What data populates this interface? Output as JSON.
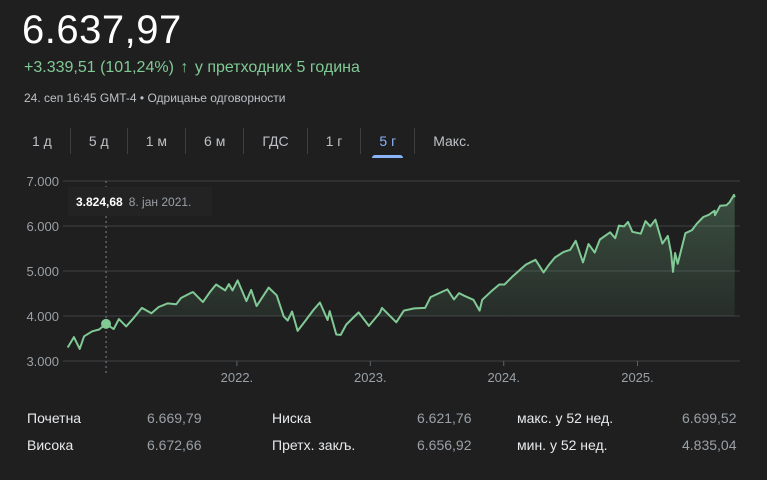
{
  "header": {
    "price": "6.637,97",
    "change": "+3.339,51 (101,24%)",
    "change_icon": "arrow-up-icon",
    "change_period": "у претходних 5 година",
    "timestamp": "24. сеп 16:45 GMT-4",
    "separator": "•",
    "disclaimer": "Одрицање одговорности"
  },
  "tabs": [
    {
      "label": "1 д",
      "active": false
    },
    {
      "label": "5 д",
      "active": false
    },
    {
      "label": "1 м",
      "active": false
    },
    {
      "label": "6 м",
      "active": false
    },
    {
      "label": "ГДС",
      "active": false
    },
    {
      "label": "1 г",
      "active": false
    },
    {
      "label": "5 г",
      "active": true
    },
    {
      "label": "Макс.",
      "active": false
    }
  ],
  "tooltip": {
    "value": "3.824,68",
    "date": "8. јан 2021."
  },
  "colors": {
    "line": "#81c995",
    "accent": "#8ab4f8",
    "background": "#1f1f1f"
  },
  "chart_data": {
    "type": "area",
    "y_ticks": [
      "7.000",
      "6.000",
      "5.000",
      "4.000",
      "3.000"
    ],
    "y_tick_values": [
      7000,
      6000,
      5000,
      4000,
      3000
    ],
    "x_ticks": [
      "2022.",
      "2023.",
      "2024.",
      "2025."
    ],
    "ylim": [
      3000,
      7000
    ],
    "xlim": [
      "2020-09-24",
      "2025-09-24"
    ],
    "grid": true,
    "highlight": {
      "date": "2021-01-08",
      "value": 3824.68
    },
    "points": [
      [
        "2020-09-25",
        3300
      ],
      [
        "2020-10-12",
        3530
      ],
      [
        "2020-10-28",
        3270
      ],
      [
        "2020-11-09",
        3550
      ],
      [
        "2020-12-01",
        3660
      ],
      [
        "2020-12-20",
        3700
      ],
      [
        "2021-01-08",
        3825
      ],
      [
        "2021-01-29",
        3710
      ],
      [
        "2021-02-12",
        3930
      ],
      [
        "2021-03-04",
        3770
      ],
      [
        "2021-03-26",
        3970
      ],
      [
        "2021-04-16",
        4180
      ],
      [
        "2021-05-12",
        4060
      ],
      [
        "2021-06-01",
        4200
      ],
      [
        "2021-06-25",
        4280
      ],
      [
        "2021-07-19",
        4260
      ],
      [
        "2021-08-01",
        4400
      ],
      [
        "2021-08-27",
        4510
      ],
      [
        "2021-09-03",
        4530
      ],
      [
        "2021-09-30",
        4310
      ],
      [
        "2021-10-20",
        4540
      ],
      [
        "2021-11-05",
        4700
      ],
      [
        "2021-11-30",
        4570
      ],
      [
        "2021-12-10",
        4710
      ],
      [
        "2021-12-20",
        4570
      ],
      [
        "2022-01-03",
        4790
      ],
      [
        "2022-01-27",
        4330
      ],
      [
        "2022-02-09",
        4580
      ],
      [
        "2022-02-24",
        4220
      ],
      [
        "2022-03-29",
        4630
      ],
      [
        "2022-04-20",
        4460
      ],
      [
        "2022-05-09",
        3990
      ],
      [
        "2022-05-20",
        3900
      ],
      [
        "2022-06-01",
        4100
      ],
      [
        "2022-06-16",
        3670
      ],
      [
        "2022-07-08",
        3900
      ],
      [
        "2022-07-29",
        4130
      ],
      [
        "2022-08-16",
        4300
      ],
      [
        "2022-09-06",
        3910
      ],
      [
        "2022-09-12",
        4110
      ],
      [
        "2022-09-30",
        3590
      ],
      [
        "2022-10-12",
        3580
      ],
      [
        "2022-10-27",
        3810
      ],
      [
        "2022-11-30",
        4080
      ],
      [
        "2022-12-28",
        3780
      ],
      [
        "2023-01-27",
        4070
      ],
      [
        "2023-02-02",
        4180
      ],
      [
        "2023-03-13",
        3860
      ],
      [
        "2023-04-03",
        4120
      ],
      [
        "2023-05-01",
        4170
      ],
      [
        "2023-05-31",
        4180
      ],
      [
        "2023-06-15",
        4420
      ],
      [
        "2023-07-31",
        4590
      ],
      [
        "2023-08-18",
        4370
      ],
      [
        "2023-09-01",
        4510
      ],
      [
        "2023-09-15",
        4450
      ],
      [
        "2023-10-10",
        4360
      ],
      [
        "2023-10-27",
        4120
      ],
      [
        "2023-11-03",
        4360
      ],
      [
        "2023-11-28",
        4550
      ],
      [
        "2023-12-20",
        4700
      ],
      [
        "2024-01-03",
        4700
      ],
      [
        "2024-01-24",
        4870
      ],
      [
        "2024-02-15",
        5030
      ],
      [
        "2024-03-01",
        5140
      ],
      [
        "2024-03-28",
        5250
      ],
      [
        "2024-04-19",
        4970
      ],
      [
        "2024-05-03",
        5130
      ],
      [
        "2024-05-20",
        5300
      ],
      [
        "2024-06-12",
        5420
      ],
      [
        "2024-07-01",
        5470
      ],
      [
        "2024-07-16",
        5670
      ],
      [
        "2024-08-05",
        5190
      ],
      [
        "2024-08-20",
        5600
      ],
      [
        "2024-09-06",
        5410
      ],
      [
        "2024-09-20",
        5700
      ],
      [
        "2024-10-18",
        5860
      ],
      [
        "2024-11-01",
        5730
      ],
      [
        "2024-11-11",
        6010
      ],
      [
        "2024-11-25",
        5990
      ],
      [
        "2024-12-06",
        6090
      ],
      [
        "2024-12-18",
        5870
      ],
      [
        "2025-01-10",
        5830
      ],
      [
        "2025-01-23",
        6110
      ],
      [
        "2025-02-05",
        5990
      ],
      [
        "2025-02-19",
        6140
      ],
      [
        "2025-03-10",
        5610
      ],
      [
        "2025-03-25",
        5780
      ],
      [
        "2025-04-03",
        5400
      ],
      [
        "2025-04-08",
        4980
      ],
      [
        "2025-04-14",
        5400
      ],
      [
        "2025-04-21",
        5160
      ],
      [
        "2025-05-12",
        5840
      ],
      [
        "2025-05-30",
        5910
      ],
      [
        "2025-06-12",
        6050
      ],
      [
        "2025-06-30",
        6200
      ],
      [
        "2025-07-15",
        6250
      ],
      [
        "2025-07-31",
        6340
      ],
      [
        "2025-08-01",
        6240
      ],
      [
        "2025-08-15",
        6450
      ],
      [
        "2025-09-01",
        6460
      ],
      [
        "2025-09-10",
        6530
      ],
      [
        "2025-09-22",
        6690
      ],
      [
        "2025-09-24",
        6638
      ]
    ]
  },
  "stats": [
    {
      "label": "Почетна",
      "value": "6.669,79"
    },
    {
      "label": "Висока",
      "value": "6.672,66"
    },
    {
      "label": "Ниска",
      "value": "6.621,76"
    },
    {
      "label": "Претх. закљ.",
      "value": "6.656,92"
    },
    {
      "label": "макс. у 52 нед.",
      "value": "6.699,52"
    },
    {
      "label": "мин. у 52 нед.",
      "value": "4.835,04"
    }
  ]
}
